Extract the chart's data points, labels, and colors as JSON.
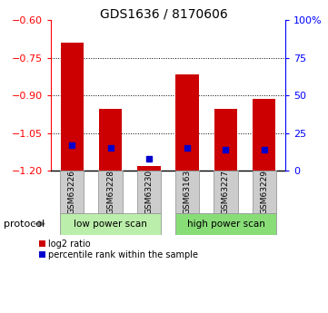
{
  "title": "GDS1636 / 8170606",
  "samples": [
    "GSM63226",
    "GSM63228",
    "GSM63230",
    "GSM63163",
    "GSM63227",
    "GSM63229"
  ],
  "log2_ratios": [
    -0.69,
    -0.955,
    -1.18,
    -0.815,
    -0.955,
    -0.915
  ],
  "percentile_ranks": [
    17,
    15,
    8,
    15,
    14,
    14
  ],
  "low_group_label": "low power scan",
  "high_group_label": "high power scan",
  "protocol_label": "protocol",
  "bar_color": "#cc0000",
  "blue_color": "#0000cc",
  "low_group_color": "#bbeeaa",
  "high_group_color": "#88dd77",
  "sample_box_color": "#cccccc",
  "ylim_left": [
    -1.2,
    -0.6
  ],
  "ylim_right": [
    0,
    100
  ],
  "yticks_left": [
    -1.2,
    -1.05,
    -0.9,
    -0.75,
    -0.6
  ],
  "yticks_right": [
    0,
    25,
    50,
    75,
    100
  ],
  "ytick_labels_right": [
    "0",
    "25",
    "50",
    "75",
    "100%"
  ],
  "bar_width": 0.6,
  "legend_red": "log2 ratio",
  "legend_blue": "percentile rank within the sample"
}
